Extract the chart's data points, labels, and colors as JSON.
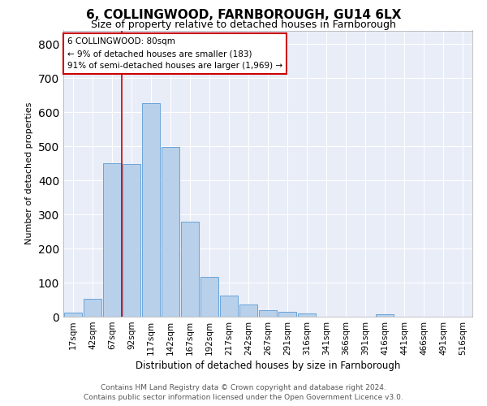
{
  "title": "6, COLLINGWOOD, FARNBOROUGH, GU14 6LX",
  "subtitle": "Size of property relative to detached houses in Farnborough",
  "xlabel": "Distribution of detached houses by size in Farnborough",
  "ylabel": "Number of detached properties",
  "footnote1": "Contains HM Land Registry data © Crown copyright and database right 2024.",
  "footnote2": "Contains public sector information licensed under the Open Government Licence v3.0.",
  "bar_labels": [
    "17sqm",
    "42sqm",
    "67sqm",
    "92sqm",
    "117sqm",
    "142sqm",
    "167sqm",
    "192sqm",
    "217sqm",
    "242sqm",
    "267sqm",
    "291sqm",
    "316sqm",
    "341sqm",
    "366sqm",
    "391sqm",
    "416sqm",
    "441sqm",
    "466sqm",
    "491sqm",
    "516sqm"
  ],
  "bar_values": [
    12,
    52,
    450,
    447,
    627,
    497,
    278,
    117,
    63,
    35,
    20,
    14,
    9,
    0,
    0,
    0,
    8,
    0,
    0,
    0,
    0
  ],
  "bar_color": "#b8d0ea",
  "bar_edge_color": "#5b9bd5",
  "background_color": "#e8edf8",
  "grid_color": "#ffffff",
  "ylim_max": 840,
  "vline_color": "#cc0000",
  "annotation_text_line1": "6 COLLINGWOOD: 80sqm",
  "annotation_text_line2": "← 9% of detached houses are smaller (183)",
  "annotation_text_line3": "91% of semi-detached houses are larger (1,969) →",
  "title_fontsize": 11,
  "subtitle_fontsize": 9,
  "annotation_fontsize": 7.5,
  "tick_fontsize": 7.5,
  "ylabel_fontsize": 8,
  "xlabel_fontsize": 8.5,
  "footnote_fontsize": 6.5,
  "vline_x_data": 2.52
}
